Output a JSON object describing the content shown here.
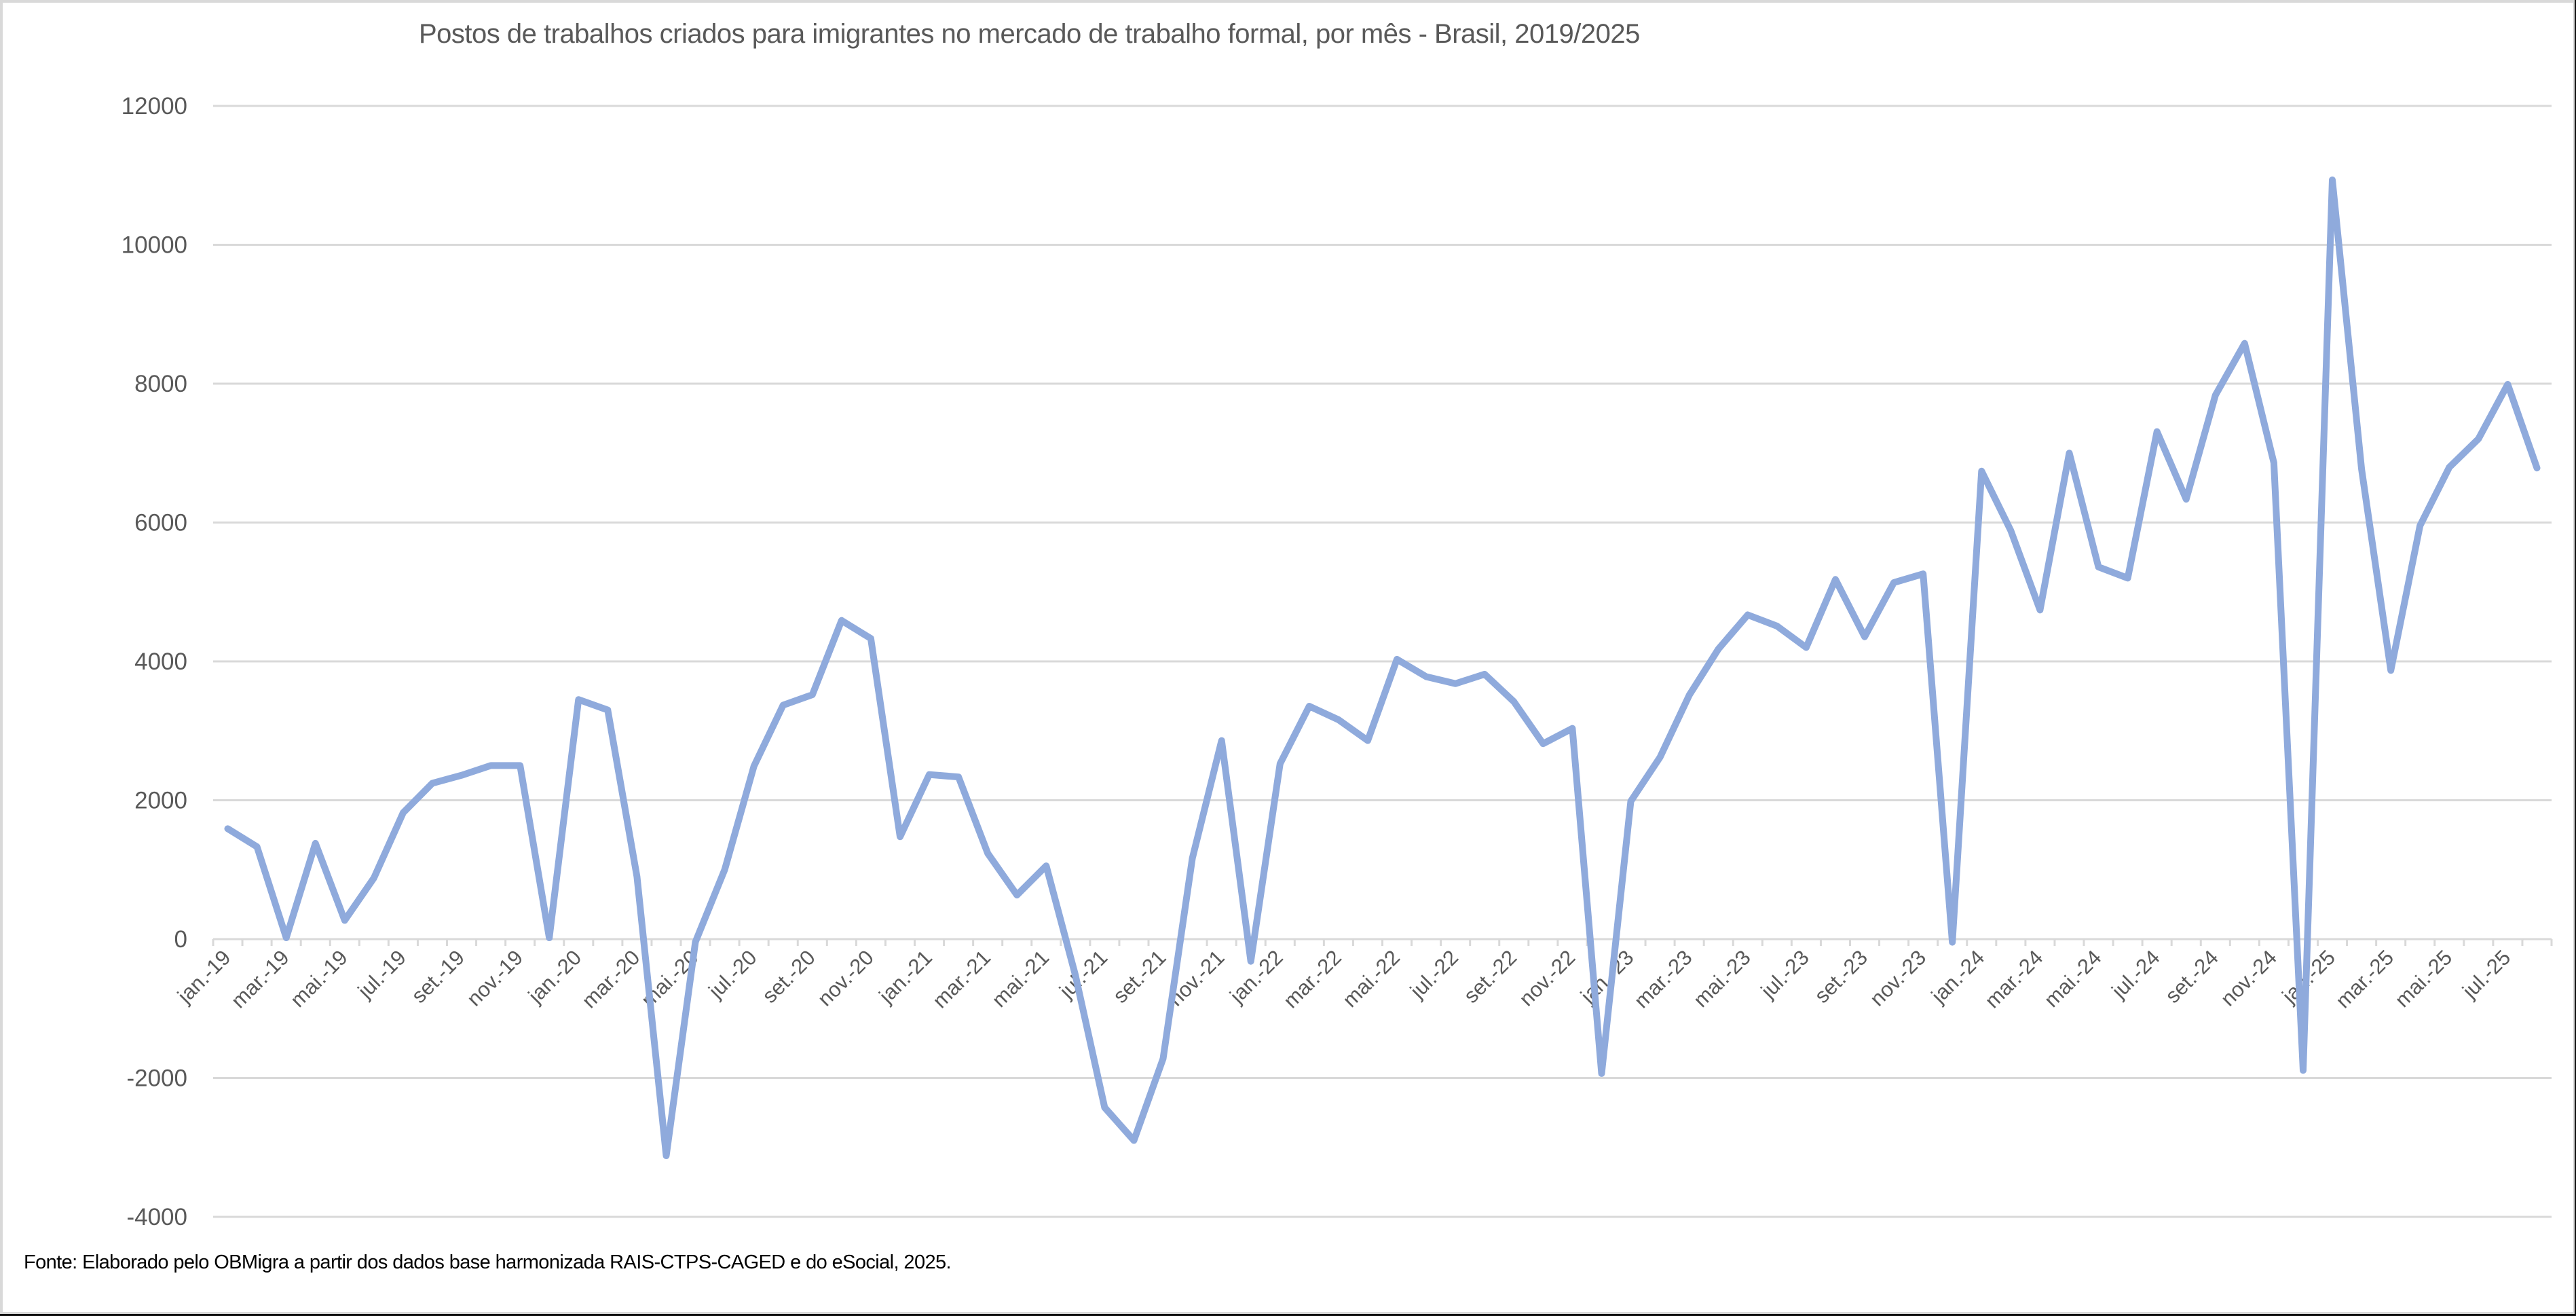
{
  "chart_data": {
    "type": "line",
    "title": "Postos de trabalhos criados para imigrantes no mercado de trabalho formal, por mês - Brasil, 2019/2025",
    "xlabel": "",
    "ylabel": "",
    "ylim": [
      -4000,
      12000
    ],
    "yticks": [
      12000,
      10000,
      8000,
      6000,
      4000,
      2000,
      0,
      -2000,
      -4000
    ],
    "grid": true,
    "legend": "none",
    "line_color": "#8FAADC",
    "x": [
      "jan.-19",
      "fev.-19",
      "mar.-19",
      "abr.-19",
      "mai.-19",
      "jun.-19",
      "jul.-19",
      "ago.-19",
      "set.-19",
      "out.-19",
      "nov.-19",
      "dez.-19",
      "jan.-20",
      "fev.-20",
      "mar.-20",
      "abr.-20",
      "mai.-20",
      "jun.-20",
      "jul.-20",
      "ago.-20",
      "set.-20",
      "out.-20",
      "nov.-20",
      "dez.-20",
      "jan.-21",
      "fev.-21",
      "mar.-21",
      "abr.-21",
      "mai.-21",
      "jun.-21",
      "jul.-21",
      "ago.-21",
      "set.-21",
      "out.-21",
      "nov.-21",
      "dez.-21",
      "jan.-22",
      "fev.-22",
      "mar.-22",
      "abr.-22",
      "mai.-22",
      "jun.-22",
      "jul.-22",
      "ago.-22",
      "set.-22",
      "out.-22",
      "nov.-22",
      "dez.-22",
      "jan.-23",
      "fev.-23",
      "mar.-23",
      "abr.-23",
      "mai.-23",
      "jun.-23",
      "jul.-23",
      "ago.-23",
      "set.-23",
      "out.-23",
      "nov.-23",
      "dez.-23",
      "jan.-24",
      "fev.-24",
      "mar.-24",
      "abr.-24",
      "mai.-24",
      "jun.-24",
      "jul.-24",
      "ago.-24",
      "set.-24",
      "out.-24",
      "nov.-24",
      "dez.-24",
      "jan.-25",
      "fev.-25",
      "mar.-25",
      "abr.-25",
      "mai.-25",
      "jun.-25",
      "jul.-25",
      "ago.-25"
    ],
    "series": [
      {
        "name": "Postos de trabalho criados",
        "values": [
          1590,
          1330,
          20,
          1380,
          270,
          880,
          1820,
          2245,
          2360,
          2500,
          2500,
          20,
          3450,
          3300,
          900,
          -3120,
          -40,
          1000,
          2490,
          3370,
          3520,
          4590,
          4330,
          1475,
          2370,
          2335,
          1235,
          635,
          1055,
          -520,
          -2425,
          -2900,
          -1720,
          1165,
          2860,
          -320,
          2525,
          3355,
          3160,
          2860,
          4030,
          3780,
          3680,
          3815,
          3420,
          2815,
          3035,
          -1935,
          1985,
          2620,
          3515,
          4180,
          4670,
          4510,
          4200,
          5180,
          4355,
          5135,
          5260,
          -45,
          6740,
          5885,
          4740,
          7000,
          5360,
          5200,
          7310,
          6335,
          7835,
          8580,
          6860,
          -1890,
          10935,
          6770,
          3870,
          5955,
          6795,
          7205,
          7990,
          6785
        ]
      }
    ],
    "x_tick_labels_shown": [
      "jan.-19",
      "mar.-19",
      "mai.-19",
      "jul.-19",
      "set.-19",
      "nov.-19",
      "jan.-20",
      "mar.-20",
      "mai.-20",
      "jul.-20",
      "set.-20",
      "nov.-20",
      "jan.-21",
      "mar.-21",
      "mai.-21",
      "jul.-21",
      "set.-21",
      "nov.-21",
      "jan.-22",
      "mar.-22",
      "mai.-22",
      "jul.-22",
      "set.-22",
      "nov.-22",
      "jan.-23",
      "mar.-23",
      "mai.-23",
      "jul.-23",
      "set.-23",
      "nov.-23",
      "jan.-24",
      "mar.-24",
      "mai.-24",
      "jul.-24",
      "set.-24",
      "nov.-24",
      "jan.-25",
      "mar.-25",
      "mai.-25",
      "jul.-25"
    ]
  },
  "footer": {
    "source": "Fonte: Elaborado pelo OBMigra a partir dos dados base harmonizada RAIS-CTPS-CAGED e do eSocial, 2025."
  }
}
